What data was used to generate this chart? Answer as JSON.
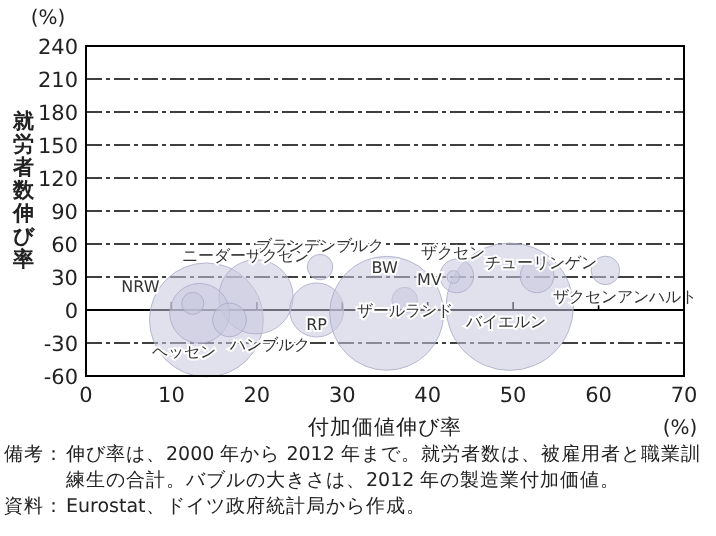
{
  "chart_data": {
    "type": "bubble",
    "xlabel": "付加価値伸び率",
    "ylabel": "就労者数伸び率",
    "xlim": [
      0,
      70
    ],
    "xticks": [
      0,
      10,
      20,
      30,
      40,
      50,
      60,
      70
    ],
    "ylim": [
      -60,
      240
    ],
    "yticks": [
      -60,
      -30,
      0,
      30,
      60,
      90,
      120,
      150,
      180,
      210,
      240
    ],
    "grid": "y",
    "ref_lines": [
      {
        "axis": "y",
        "value": 0,
        "line_style": "solid",
        "color": "#000000"
      }
    ],
    "series": [
      {
        "name": "NRW",
        "color": "#c8c8de",
        "x": [
          14.1
        ],
        "values": [
          -9
        ],
        "sizes": [
          0.8
        ]
      },
      {
        "name": "ニーダーザクセン",
        "color": "#c8c8de",
        "x": [
          19.9
        ],
        "values": [
          12
        ],
        "sizes": [
          0.34
        ]
      },
      {
        "name": "ヘッセン",
        "color": "#c8c8de",
        "x": [
          13.3
        ],
        "values": [
          -3
        ],
        "sizes": [
          0.22
        ]
      },
      {
        "name": "ハンブルク",
        "color": "#c8c8de",
        "x": [
          16.8
        ],
        "values": [
          -9
        ],
        "sizes": [
          0.07
        ]
      },
      {
        "name": "RP",
        "color": "#c8c8de",
        "x": [
          27
        ],
        "values": [
          0
        ],
        "sizes": [
          0.18
        ]
      },
      {
        "name": "ザールランド",
        "color": "#c8c8de",
        "x": [
          37.3
        ],
        "values": [
          9
        ],
        "sizes": [
          0.04
        ]
      },
      {
        "name": "バイエルン",
        "color": "#c8c8de",
        "x": [
          49.6
        ],
        "values": [
          3
        ],
        "sizes": [
          1
        ]
      },
      {
        "name": "BW",
        "color": "#c8c8de",
        "x": [
          35.2
        ],
        "values": [
          -3
        ],
        "sizes": [
          0.8
        ]
      },
      {
        "name": "ブランデンブルク",
        "color": "#c8c8de",
        "x": [
          27.4
        ],
        "values": [
          39
        ],
        "sizes": [
          0.04
        ]
      },
      {
        "name": "ザクセン",
        "color": "#c8c8de",
        "x": [
          43.4
        ],
        "values": [
          31
        ],
        "sizes": [
          0.07
        ]
      },
      {
        "name": "MV",
        "color": "#c8c8de",
        "x": [
          43
        ],
        "values": [
          30
        ],
        "sizes": [
          0.01
        ]
      },
      {
        "name": "チューリンゲン",
        "color": "#c8c8de",
        "x": [
          52.8
        ],
        "values": [
          31
        ],
        "sizes": [
          0.07
        ]
      },
      {
        "name": "ザクセンアンハルト",
        "color": "#c8c8de",
        "x": [
          60.8
        ],
        "values": [
          36
        ],
        "sizes": [
          0.05
        ]
      },
      {
        "color": "#c8c8de",
        "x": [
          12.5
        ],
        "values": [
          6
        ],
        "sizes": [
          0.03
        ]
      }
    ],
    "annotations": [
      "(%)",
      "(%)",
      "備考：伸び率は、2000 年から 2012 年まで。就労者数は、被雇用者と職業訓練生の合計。バブルの大きさは、2012 年の製造業付加価値。",
      "資料：Eurostat、ドイツ政府統計局から作成。"
    ]
  }
}
